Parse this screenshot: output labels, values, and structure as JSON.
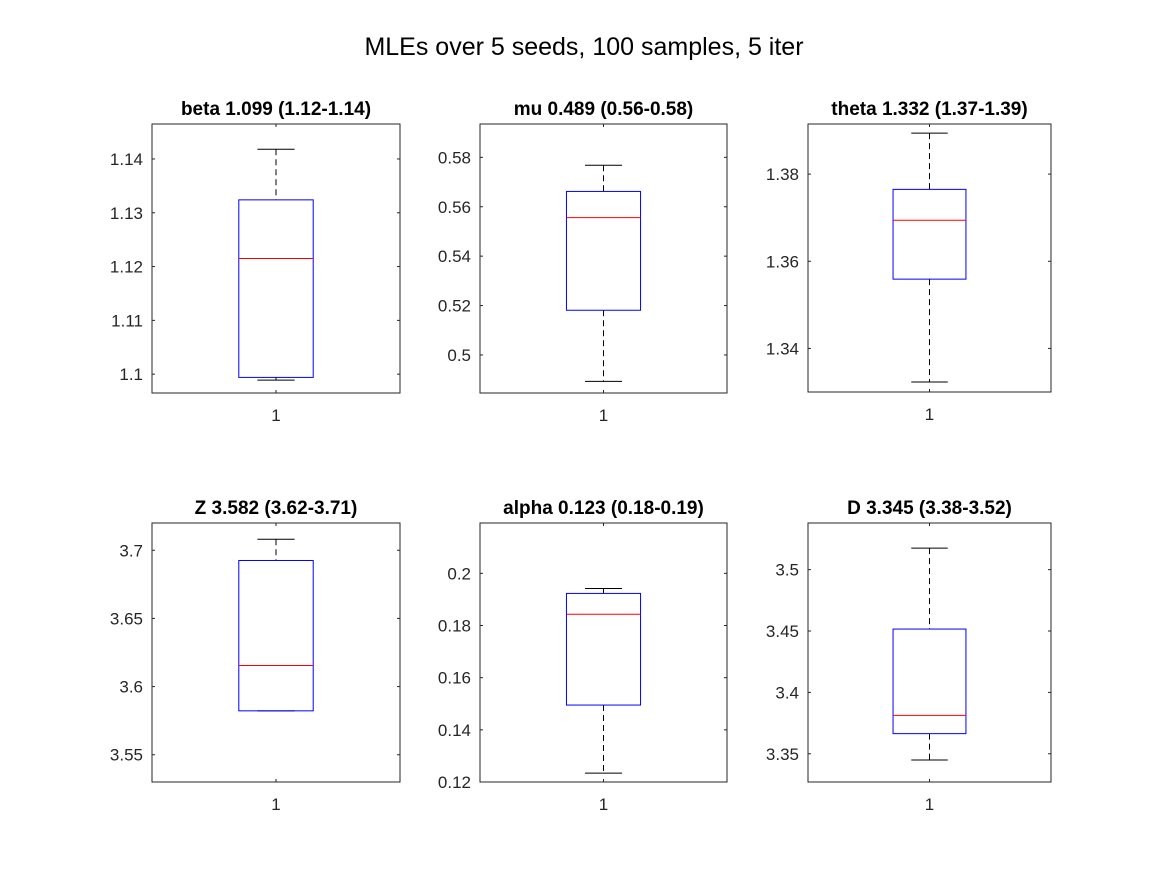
{
  "figure": {
    "title": "MLEs over 5 seeds, 100 samples, 5 iter"
  },
  "colors": {
    "box": "#0000ff",
    "median": "#ff0000",
    "whisker": "#000000",
    "axis": "#262626"
  },
  "chart_data": [
    {
      "type": "box",
      "title": "beta 1.099 (1.12-1.14)",
      "categories": [
        "1"
      ],
      "ylim": [
        1.0965,
        1.1465
      ],
      "yticks": [
        1.1,
        1.11,
        1.12,
        1.13,
        1.14
      ],
      "ytick_labels": [
        "1.1",
        "1.11",
        "1.12",
        "1.13",
        "1.14"
      ],
      "stats": {
        "min": 1.0989,
        "q1": 1.0994,
        "median": 1.1215,
        "q3": 1.1324,
        "max": 1.1418
      }
    },
    {
      "type": "box",
      "title": "mu 0.489 (0.56-0.58)",
      "categories": [
        "1"
      ],
      "ylim": [
        0.4846,
        0.5935
      ],
      "yticks": [
        0.5,
        0.52,
        0.54,
        0.56,
        0.58
      ],
      "ytick_labels": [
        "0.5",
        "0.52",
        "0.54",
        "0.56",
        "0.58"
      ],
      "stats": {
        "min": 0.4893,
        "q1": 0.5181,
        "median": 0.5556,
        "q3": 0.5662,
        "max": 0.5768
      }
    },
    {
      "type": "box",
      "title": "theta 1.332 (1.37-1.39)",
      "categories": [
        "1"
      ],
      "ylim": [
        1.33,
        1.3915
      ],
      "yticks": [
        1.34,
        1.36,
        1.38
      ],
      "ytick_labels": [
        "1.34",
        "1.36",
        "1.38"
      ],
      "stats": {
        "min": 1.3323,
        "q1": 1.3559,
        "median": 1.3694,
        "q3": 1.3765,
        "max": 1.3894
      }
    },
    {
      "type": "box",
      "title": "Z 3.582 (3.62-3.71)",
      "categories": [
        "1"
      ],
      "ylim": [
        3.53,
        3.72
      ],
      "yticks": [
        3.55,
        3.6,
        3.65,
        3.7
      ],
      "ytick_labels": [
        "3.55",
        "3.6",
        "3.65",
        "3.7"
      ],
      "stats": {
        "min": 3.5822,
        "q1": 3.5822,
        "median": 3.6155,
        "q3": 3.6925,
        "max": 3.7081
      }
    },
    {
      "type": "box",
      "title": "alpha 0.123 (0.18-0.19)",
      "categories": [
        "1"
      ],
      "ylim": [
        0.12,
        0.2193
      ],
      "yticks": [
        0.12,
        0.14,
        0.16,
        0.18,
        0.2
      ],
      "ytick_labels": [
        "0.12",
        "0.14",
        "0.16",
        "0.18",
        "0.2"
      ],
      "stats": {
        "min": 0.1234,
        "q1": 0.1495,
        "median": 0.1843,
        "q3": 0.1923,
        "max": 0.1942
      }
    },
    {
      "type": "box",
      "title": "D 3.345 (3.38-3.52)",
      "categories": [
        "1"
      ],
      "ylim": [
        3.327,
        3.538
      ],
      "yticks": [
        3.35,
        3.4,
        3.45,
        3.5
      ],
      "ytick_labels": [
        "3.35",
        "3.4",
        "3.45",
        "3.5"
      ],
      "stats": {
        "min": 3.3449,
        "q1": 3.3664,
        "median": 3.3813,
        "q3": 3.4516,
        "max": 3.5175
      }
    }
  ]
}
